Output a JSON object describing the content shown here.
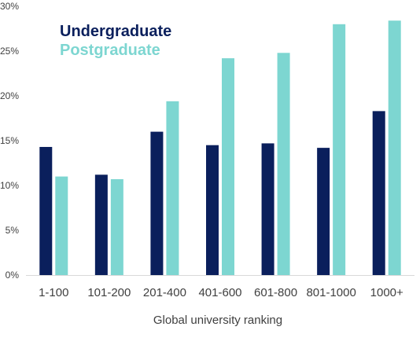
{
  "chart_data": {
    "type": "bar",
    "title": "",
    "xlabel": "Global university ranking",
    "ylabel": "",
    "categories": [
      "1-100",
      "101-200",
      "201-400",
      "401-600",
      "601-800",
      "801-1000",
      "1000+"
    ],
    "series": [
      {
        "name": "Undergraduate",
        "color": "#0a1f5c",
        "values": [
          14.3,
          11.2,
          16.0,
          14.5,
          14.7,
          14.2,
          18.3
        ]
      },
      {
        "name": "Postgraduate",
        "color": "#7dd6d1",
        "values": [
          11.0,
          10.7,
          19.4,
          24.2,
          24.8,
          28.0,
          28.4
        ]
      }
    ],
    "ylim": [
      0,
      30
    ],
    "yticks": [
      0,
      5,
      10,
      15,
      20,
      25,
      30
    ],
    "ytick_labels": [
      "0%",
      "5%",
      "10%",
      "15%",
      "20%",
      "25%",
      "30%"
    ],
    "grid": false,
    "legend": "top-left"
  }
}
